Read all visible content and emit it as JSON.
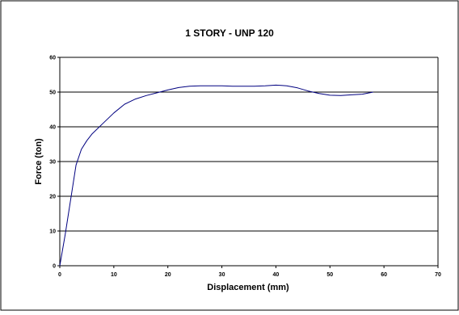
{
  "chart_data": {
    "type": "line",
    "title": "1 STORY - UNP 120",
    "xlabel": "Displacement (mm)",
    "ylabel": "Force (ton)",
    "xlim": [
      0,
      70
    ],
    "ylim": [
      0,
      60
    ],
    "xticks": [
      0,
      10,
      20,
      30,
      40,
      50,
      60,
      70
    ],
    "yticks": [
      0,
      10,
      20,
      30,
      40,
      50,
      60
    ],
    "grid": "horizontal major gridlines",
    "legend": "none",
    "series": [
      {
        "color": "#000080",
        "x": [
          0,
          1,
          2,
          3,
          4,
          5,
          6,
          8,
          10,
          12,
          14,
          16,
          18,
          20,
          22,
          24,
          26,
          28,
          30,
          32,
          34,
          36,
          38,
          40,
          41,
          42,
          44,
          46,
          48,
          50,
          52,
          54,
          56,
          58
        ],
        "y": [
          0,
          9,
          19,
          29,
          33.5,
          36,
          38,
          41,
          44,
          46.5,
          48,
          49,
          49.8,
          50.6,
          51.3,
          51.7,
          51.8,
          51.8,
          51.8,
          51.7,
          51.7,
          51.7,
          51.8,
          52,
          51.9,
          51.8,
          51.2,
          50.3,
          49.6,
          49.1,
          49,
          49.2,
          49.4,
          50
        ]
      }
    ]
  }
}
